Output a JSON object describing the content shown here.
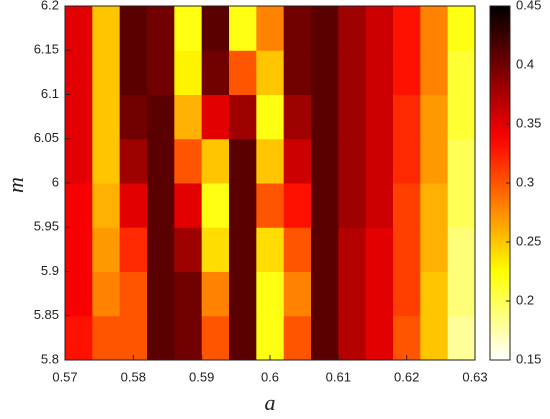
{
  "chart_data": {
    "type": "heatmap",
    "x_label": "a",
    "y_label": "m",
    "x": [
      0.57,
      0.574,
      0.578,
      0.582,
      0.586,
      0.59,
      0.594,
      0.598,
      0.602,
      0.606,
      0.61,
      0.614,
      0.618,
      0.622,
      0.626,
      0.63
    ],
    "y": [
      5.8,
      5.85,
      5.9,
      5.95,
      6.0,
      6.05,
      6.1,
      6.15,
      6.2
    ],
    "z": [
      [
        0.33,
        0.3,
        0.3,
        0.41,
        0.4,
        0.3,
        0.41,
        0.22,
        0.3,
        0.41,
        0.37,
        0.35,
        0.3,
        0.25,
        0.18
      ],
      [
        0.34,
        0.28,
        0.3,
        0.41,
        0.4,
        0.28,
        0.41,
        0.22,
        0.28,
        0.41,
        0.37,
        0.35,
        0.31,
        0.25,
        0.19
      ],
      [
        0.34,
        0.27,
        0.32,
        0.41,
        0.38,
        0.24,
        0.41,
        0.24,
        0.3,
        0.41,
        0.37,
        0.35,
        0.31,
        0.26,
        0.19
      ],
      [
        0.34,
        0.26,
        0.35,
        0.41,
        0.35,
        0.22,
        0.41,
        0.3,
        0.33,
        0.41,
        0.38,
        0.36,
        0.31,
        0.26,
        0.2
      ],
      [
        0.35,
        0.25,
        0.38,
        0.41,
        0.3,
        0.25,
        0.41,
        0.25,
        0.36,
        0.41,
        0.38,
        0.36,
        0.32,
        0.27,
        0.2
      ],
      [
        0.35,
        0.25,
        0.4,
        0.41,
        0.26,
        0.35,
        0.38,
        0.22,
        0.38,
        0.41,
        0.38,
        0.36,
        0.32,
        0.27,
        0.21
      ],
      [
        0.35,
        0.25,
        0.41,
        0.4,
        0.23,
        0.4,
        0.3,
        0.25,
        0.4,
        0.41,
        0.38,
        0.36,
        0.33,
        0.28,
        0.21
      ],
      [
        0.35,
        0.25,
        0.41,
        0.4,
        0.22,
        0.41,
        0.22,
        0.28,
        0.4,
        0.41,
        0.38,
        0.36,
        0.33,
        0.28,
        0.22
      ]
    ],
    "colormap": "hot-reversed",
    "xlim": [
      0.57,
      0.63
    ],
    "xticks": [
      0.57,
      0.58,
      0.59,
      0.6,
      0.61,
      0.62,
      0.63
    ],
    "ylim": [
      5.8,
      6.2
    ],
    "yticks": [
      5.8,
      5.85,
      5.9,
      5.95,
      6,
      6.05,
      6.1,
      6.15,
      6.2
    ],
    "clim": [
      0.15,
      0.45
    ],
    "cticks": [
      0.15,
      0.2,
      0.25,
      0.3,
      0.35,
      0.4,
      0.45
    ]
  }
}
